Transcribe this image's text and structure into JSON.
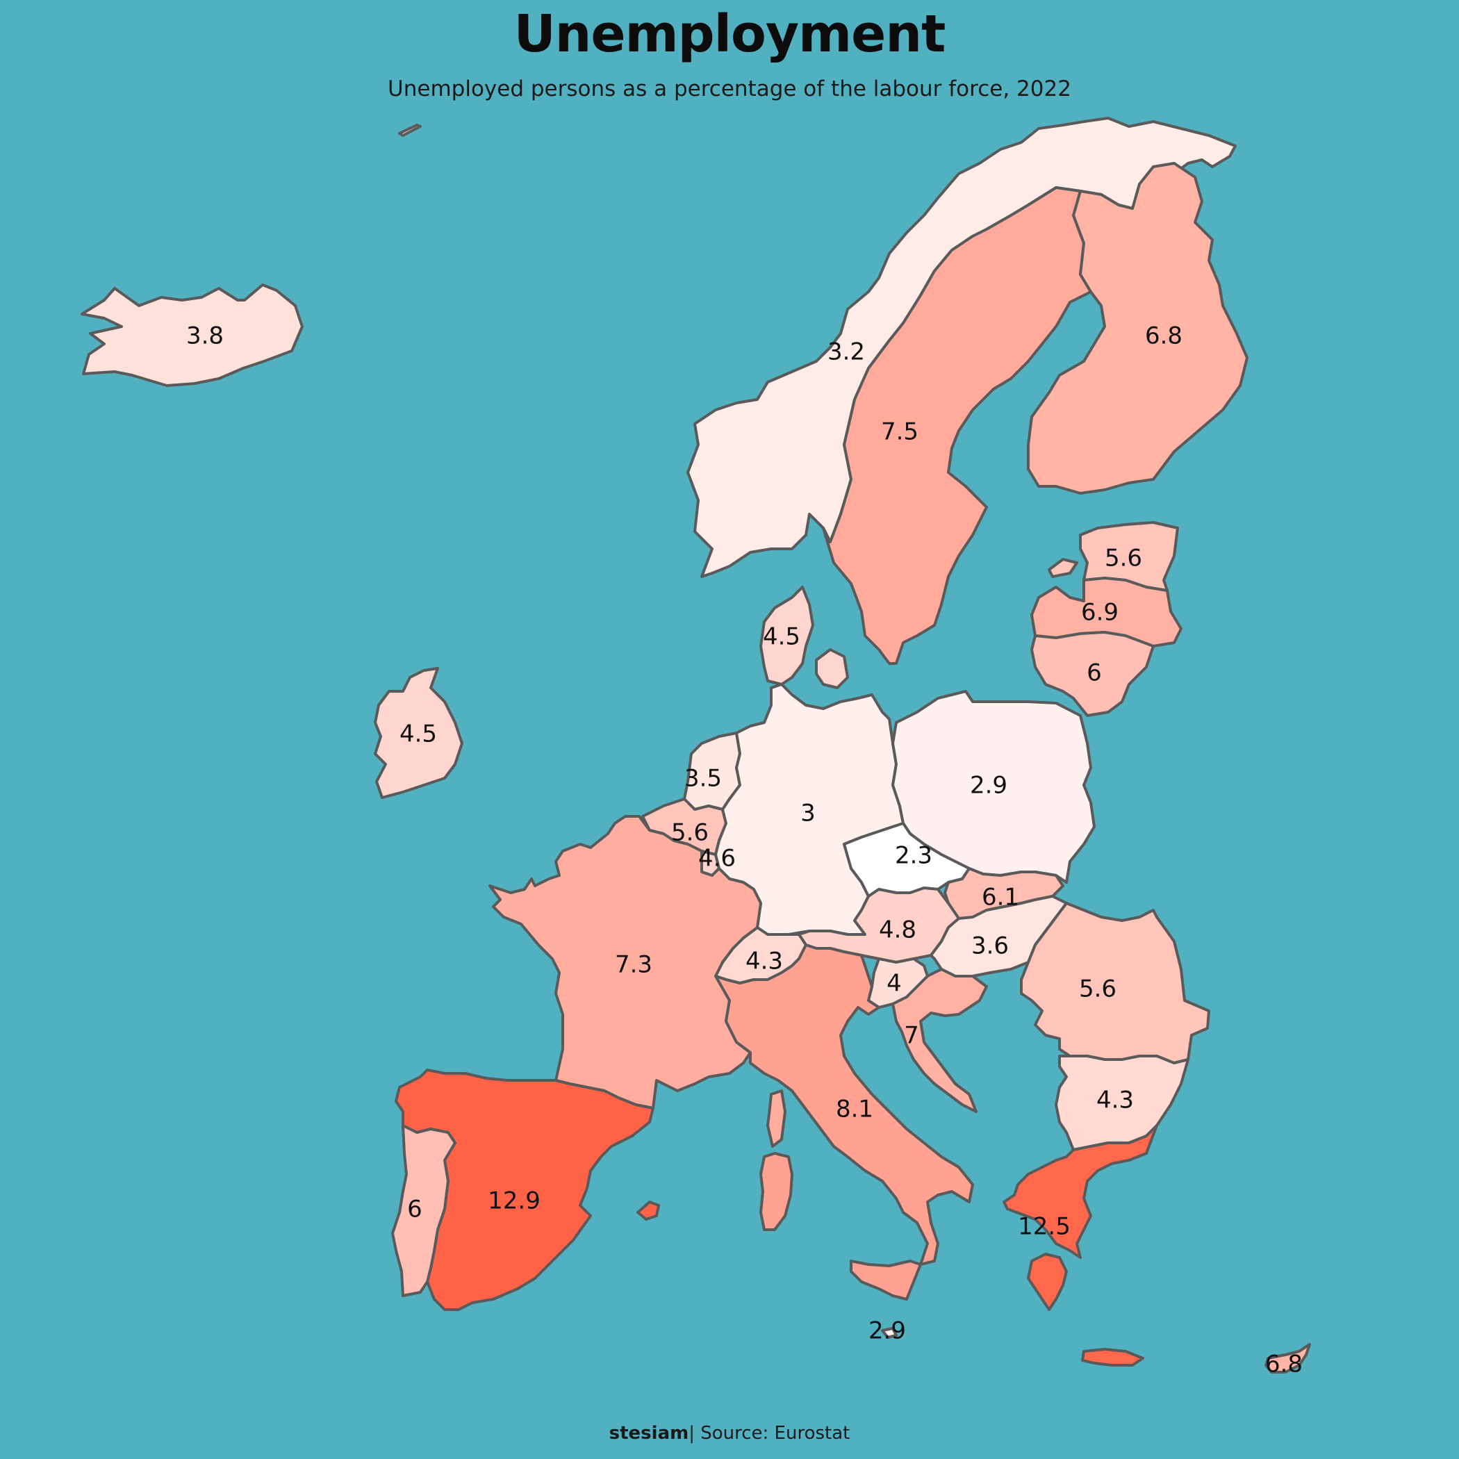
{
  "title": "Unemployment",
  "subtitle": "Unemployed persons as a percentage of the labour force, 2022",
  "footer": {
    "brand": "stesiam",
    "separator": "|",
    "source": "Source: Eurostat"
  },
  "colors": {
    "sea": "#52b1c1",
    "border": "#5a5a5a",
    "scale_low": "#ffffff",
    "scale_high": "#ff6347"
  },
  "regions": [
    {
      "id": "iceland",
      "value": "3.8"
    },
    {
      "id": "norway",
      "value": "3.2"
    },
    {
      "id": "sweden",
      "value": "7.5"
    },
    {
      "id": "finland",
      "value": "6.8"
    },
    {
      "id": "estonia",
      "value": "5.6"
    },
    {
      "id": "latvia",
      "value": "6.9"
    },
    {
      "id": "lithuania",
      "value": "6"
    },
    {
      "id": "denmark",
      "value": "4.5"
    },
    {
      "id": "ireland",
      "value": "4.5"
    },
    {
      "id": "netherlands",
      "value": "3.5"
    },
    {
      "id": "belgium",
      "value": "5.6"
    },
    {
      "id": "luxembourg",
      "value": "4.6"
    },
    {
      "id": "germany",
      "value": "3"
    },
    {
      "id": "poland",
      "value": "2.9"
    },
    {
      "id": "czechia",
      "value": "2.3"
    },
    {
      "id": "slovakia",
      "value": "6.1"
    },
    {
      "id": "austria",
      "value": "4.8"
    },
    {
      "id": "hungary",
      "value": "3.6"
    },
    {
      "id": "switzerland",
      "value": "4.3"
    },
    {
      "id": "france",
      "value": "7.3"
    },
    {
      "id": "slovenia",
      "value": "4"
    },
    {
      "id": "croatia",
      "value": "7"
    },
    {
      "id": "romania",
      "value": "5.6"
    },
    {
      "id": "bulgaria",
      "value": "4.3"
    },
    {
      "id": "italy",
      "value": "8.1"
    },
    {
      "id": "spain",
      "value": "12.9"
    },
    {
      "id": "portugal",
      "value": "6"
    },
    {
      "id": "greece",
      "value": "12.5"
    },
    {
      "id": "malta",
      "value": "2.9"
    },
    {
      "id": "cyprus",
      "value": "6.8"
    }
  ]
}
